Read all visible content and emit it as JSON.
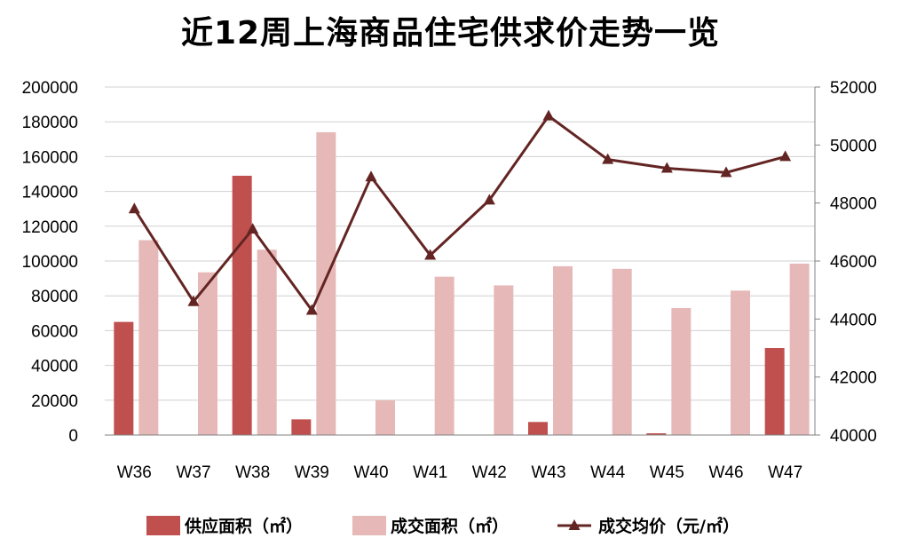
{
  "chart_data": {
    "type": "bar",
    "title": "近12周上海商品住宅供求价走势一览",
    "categories": [
      "W36",
      "W37",
      "W38",
      "W39",
      "W40",
      "W41",
      "W42",
      "W43",
      "W44",
      "W45",
      "W46",
      "W47"
    ],
    "series": [
      {
        "name": "供应面积（㎡）",
        "kind": "bar",
        "axis": "left",
        "color": "#c0504d",
        "values": [
          65000,
          0,
          149000,
          9000,
          0,
          0,
          0,
          7500,
          0,
          1000,
          0,
          50000
        ]
      },
      {
        "name": "成交面积（㎡）",
        "kind": "bar",
        "axis": "left",
        "color": "#e6b9b8",
        "values": [
          112000,
          93500,
          106500,
          174000,
          20000,
          91000,
          86000,
          97000,
          95500,
          73000,
          83000,
          98500
        ]
      },
      {
        "name": "成交均价（元/㎡）",
        "kind": "line",
        "axis": "right",
        "color": "#632523",
        "values": [
          47800,
          44600,
          47100,
          44300,
          48900,
          46200,
          48100,
          51000,
          49500,
          49200,
          49050,
          49600
        ]
      }
    ],
    "left_axis": {
      "min": 0,
      "max": 200000,
      "step": 20000,
      "ticks": [
        "0",
        "20000",
        "40000",
        "60000",
        "80000",
        "100000",
        "120000",
        "140000",
        "160000",
        "180000",
        "200000"
      ]
    },
    "right_axis": {
      "min": 40000,
      "max": 52000,
      "step": 2000,
      "ticks": [
        "40000",
        "42000",
        "44000",
        "46000",
        "48000",
        "50000",
        "52000"
      ]
    },
    "grid": true,
    "legend_position": "bottom"
  }
}
